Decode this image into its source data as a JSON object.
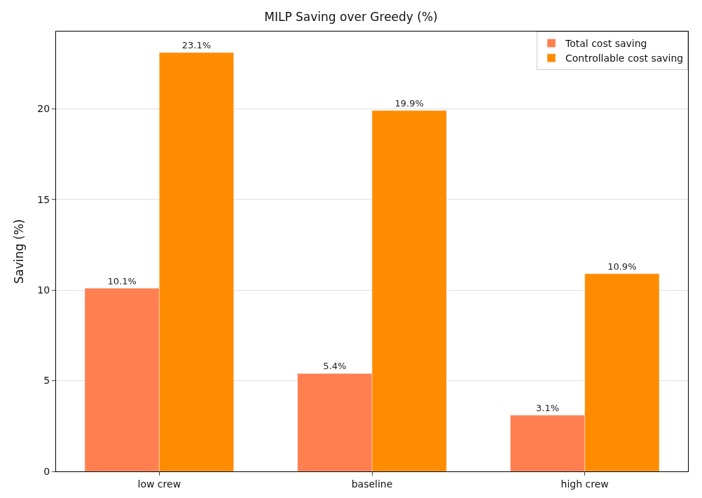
{
  "chart_data": {
    "type": "bar",
    "title": "MILP Saving over Greedy (%)",
    "ylabel": "Saving (%)",
    "categories": [
      "low crew",
      "baseline",
      "high crew"
    ],
    "series": [
      {
        "name": "Total cost saving",
        "color": "#ff7f50",
        "values": [
          10.1,
          5.4,
          3.1
        ],
        "value_labels": [
          "10.1%",
          "5.4%",
          "3.1%"
        ]
      },
      {
        "name": "Controllable cost saving",
        "color": "#ff8c00",
        "values": [
          23.1,
          19.9,
          10.9
        ],
        "value_labels": [
          "23.1%",
          "19.9%",
          "10.9%"
        ]
      }
    ],
    "ylim": [
      0,
      24.26
    ],
    "yticks": [
      0,
      5,
      10,
      15,
      20
    ],
    "grid": "y",
    "legend": "top right"
  }
}
